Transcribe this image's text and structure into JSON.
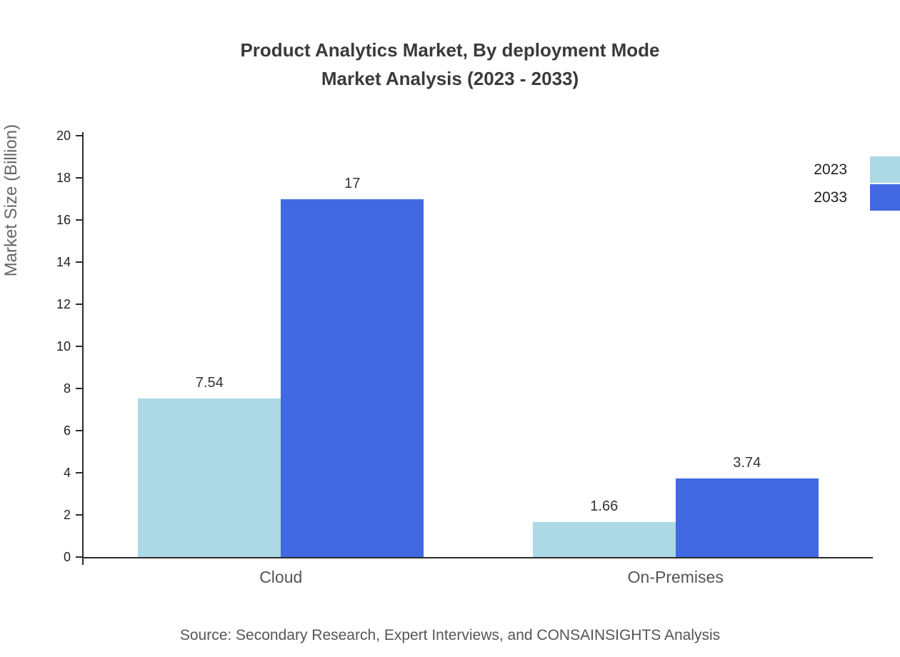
{
  "header": {
    "title_line1": "Product Analytics Market, By deployment Mode",
    "title_line2": "Market Analysis (2023 - 2033)"
  },
  "chart_data": {
    "type": "bar",
    "title": "Product Analytics Market, By deployment Mode Market Analysis (2023 - 2033)",
    "categories": [
      "Cloud",
      "On-Premises"
    ],
    "series": [
      {
        "name": "2023",
        "color": "#add8e6",
        "values": [
          7.54,
          1.66
        ]
      },
      {
        "name": "2033",
        "color": "#4169e1",
        "values": [
          17,
          3.74
        ]
      }
    ],
    "xlabel": "",
    "ylabel": "Market Size (Billion)",
    "ylim": [
      0,
      20
    ],
    "ytick_step": 2,
    "grid": false,
    "legend_position": "top-right"
  },
  "source": "Source: Secondary Research, Expert Interviews, and CONSAINSIGHTS Analysis"
}
